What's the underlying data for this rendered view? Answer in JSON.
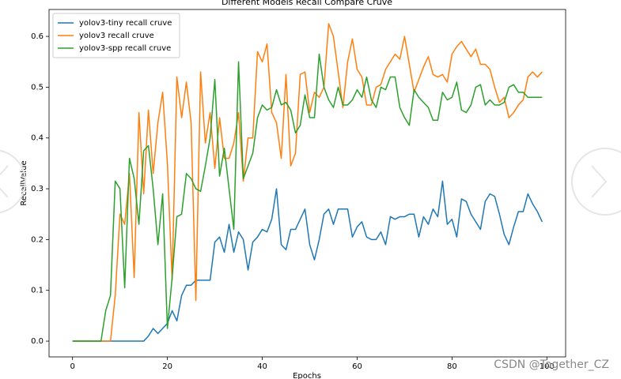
{
  "chart_data": {
    "type": "line",
    "title": "Different Models Recall Compare Cruve",
    "x_label": "Epochs",
    "y_label": "RecallValue",
    "x": [
      0,
      1,
      2,
      3,
      4,
      5,
      6,
      7,
      8,
      9,
      10,
      11,
      12,
      13,
      14,
      15,
      16,
      17,
      18,
      19,
      20,
      21,
      22,
      23,
      24,
      25,
      26,
      27,
      28,
      29,
      30,
      31,
      32,
      33,
      34,
      35,
      36,
      37,
      38,
      39,
      40,
      41,
      42,
      43,
      44,
      45,
      46,
      47,
      48,
      49,
      50,
      51,
      52,
      53,
      54,
      55,
      56,
      57,
      58,
      59,
      60,
      61,
      62,
      63,
      64,
      65,
      66,
      67,
      68,
      69,
      70,
      71,
      72,
      73,
      74,
      75,
      76,
      77,
      78,
      79,
      80,
      81,
      82,
      83,
      84,
      85,
      86,
      87,
      88,
      89,
      90,
      91,
      92,
      93,
      94,
      95,
      96,
      97,
      98,
      99
    ],
    "series": [
      {
        "name": "yolov3-tiny recall cruve",
        "color": "#1f77b4",
        "values": [
          0,
          0,
          0,
          0,
          0,
          0,
          0,
          0,
          0,
          0,
          0,
          0,
          0,
          0,
          0,
          0,
          0.01,
          0.025,
          0.015,
          0.025,
          0.035,
          0.06,
          0.04,
          0.09,
          0.11,
          0.11,
          0.12,
          0.12,
          0.12,
          0.12,
          0.195,
          0.205,
          0.175,
          0.23,
          0.175,
          0.215,
          0.2,
          0.14,
          0.195,
          0.205,
          0.22,
          0.215,
          0.24,
          0.3,
          0.19,
          0.18,
          0.22,
          0.22,
          0.24,
          0.26,
          0.19,
          0.16,
          0.2,
          0.25,
          0.26,
          0.23,
          0.26,
          0.26,
          0.26,
          0.205,
          0.225,
          0.235,
          0.205,
          0.2,
          0.2,
          0.215,
          0.19,
          0.245,
          0.24,
          0.245,
          0.245,
          0.25,
          0.25,
          0.205,
          0.245,
          0.23,
          0.26,
          0.245,
          0.315,
          0.23,
          0.24,
          0.205,
          0.28,
          0.275,
          0.25,
          0.235,
          0.22,
          0.275,
          0.29,
          0.285,
          0.25,
          0.21,
          0.19,
          0.225,
          0.255,
          0.255,
          0.29,
          0.27,
          0.255,
          0.235
        ]
      },
      {
        "name": "yolov3 recall cruve",
        "color": "#ff7f0e",
        "values": [
          0,
          0,
          0,
          0,
          0,
          0,
          0,
          0,
          0,
          0.09,
          0.25,
          0.23,
          0.33,
          0.125,
          0.45,
          0.29,
          0.455,
          0.33,
          0.43,
          0.49,
          0.35,
          0.12,
          0.52,
          0.44,
          0.51,
          0.43,
          0.08,
          0.53,
          0.39,
          0.45,
          0.34,
          0.44,
          0.36,
          0.36,
          0.39,
          0.45,
          0.315,
          0.4,
          0.4,
          0.57,
          0.55,
          0.585,
          0.45,
          0.43,
          0.36,
          0.525,
          0.345,
          0.37,
          0.525,
          0.53,
          0.45,
          0.49,
          0.48,
          0.5,
          0.625,
          0.6,
          0.53,
          0.46,
          0.55,
          0.595,
          0.535,
          0.52,
          0.465,
          0.465,
          0.5,
          0.505,
          0.535,
          0.55,
          0.565,
          0.555,
          0.6,
          0.545,
          0.49,
          0.515,
          0.54,
          0.56,
          0.525,
          0.52,
          0.525,
          0.51,
          0.565,
          0.58,
          0.59,
          0.575,
          0.56,
          0.575,
          0.545,
          0.545,
          0.535,
          0.5,
          0.47,
          0.48,
          0.44,
          0.45,
          0.465,
          0.475,
          0.52,
          0.53,
          0.52,
          0.53
        ]
      },
      {
        "name": "yolov3-spp recall cruve",
        "color": "#2ca02c",
        "values": [
          0,
          0,
          0,
          0,
          0,
          0,
          0,
          0.06,
          0.09,
          0.315,
          0.3,
          0.105,
          0.36,
          0.32,
          0.23,
          0.375,
          0.385,
          0.3,
          0.19,
          0.29,
          0.025,
          0.125,
          0.245,
          0.25,
          0.33,
          0.32,
          0.3,
          0.295,
          0.345,
          0.4,
          0.515,
          0.325,
          0.38,
          0.3,
          0.22,
          0.55,
          0.32,
          0.345,
          0.37,
          0.44,
          0.465,
          0.455,
          0.46,
          0.495,
          0.465,
          0.47,
          0.455,
          0.41,
          0.425,
          0.485,
          0.44,
          0.44,
          0.565,
          0.5,
          0.475,
          0.46,
          0.5,
          0.465,
          0.465,
          0.475,
          0.495,
          0.48,
          0.52,
          0.475,
          0.46,
          0.5,
          0.495,
          0.52,
          0.52,
          0.46,
          0.44,
          0.425,
          0.495,
          0.48,
          0.47,
          0.46,
          0.435,
          0.435,
          0.49,
          0.475,
          0.48,
          0.51,
          0.455,
          0.45,
          0.465,
          0.5,
          0.505,
          0.465,
          0.475,
          0.465,
          0.465,
          0.47,
          0.5,
          0.505,
          0.49,
          0.49,
          0.48,
          0.48,
          0.48,
          0.48
        ]
      }
    ],
    "xlim": [
      -4.95,
      103.95
    ],
    "xticks": [
      0,
      20,
      40,
      60,
      80,
      100
    ],
    "ylim": [
      -0.031,
      0.653
    ],
    "yticks": [
      {
        "value": 0,
        "label": "0.0"
      },
      0.1,
      0.2,
      0.3,
      0.4,
      0.5,
      0.6
    ],
    "legend": "upper left",
    "grid": false
  },
  "watermark": "CSDN @Together_CZ"
}
